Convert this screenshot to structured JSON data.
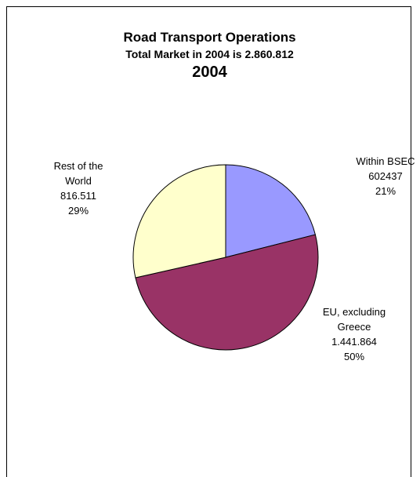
{
  "chart_data": {
    "type": "pie",
    "title": "Road Transport Operations",
    "subtitle": "Total Market in 2004 is 2.860.812",
    "year_label": "2004",
    "slices": [
      {
        "name": "Within BSEC",
        "value": 602437,
        "percent": 21,
        "color": "#9999ff",
        "label_lines": [
          "Within BSEC",
          "602437",
          "21%"
        ]
      },
      {
        "name": "EU, excluding Greece",
        "value": 1441864,
        "percent": 50,
        "color": "#993366",
        "label_lines": [
          "EU, excluding",
          "Greece",
          "1.441.864",
          "50%"
        ]
      },
      {
        "name": "Rest of the World",
        "value": 816511,
        "percent": 29,
        "color": "#ffffcc",
        "label_lines": [
          "Rest of the",
          "World",
          "816.511",
          "29%"
        ]
      }
    ],
    "legend": "none"
  }
}
